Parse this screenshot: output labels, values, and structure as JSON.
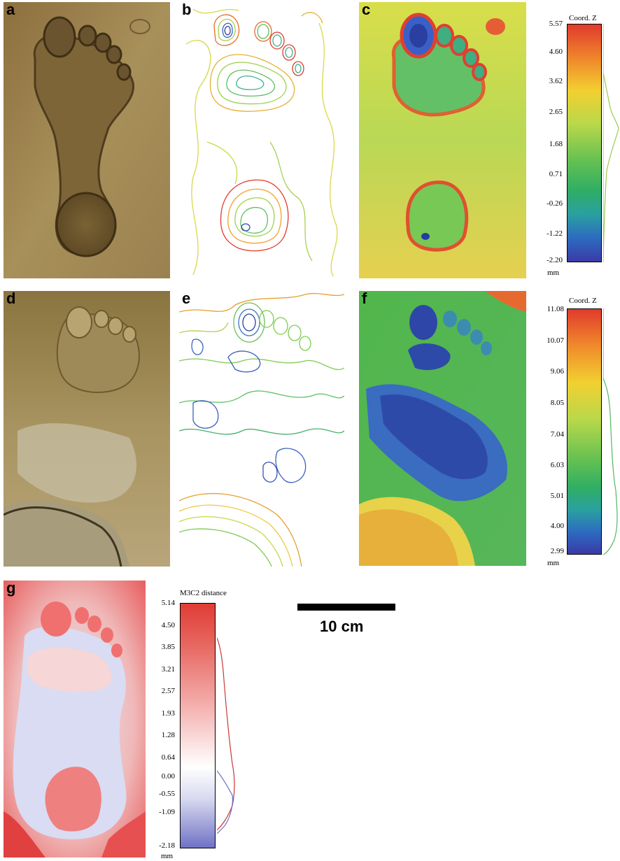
{
  "panels": {
    "a": {
      "label": "a"
    },
    "b": {
      "label": "b"
    },
    "c": {
      "label": "c"
    },
    "d": {
      "label": "d"
    },
    "e": {
      "label": "e"
    },
    "f": {
      "label": "f"
    },
    "g": {
      "label": "g"
    }
  },
  "colorbar1": {
    "title": "Coord. Z",
    "ticks": [
      "5.57",
      "4.60",
      "3.62",
      "2.65",
      "1.68",
      "0.71",
      "-0.26",
      "-1.22",
      "-2.20"
    ],
    "unit": "mm"
  },
  "colorbar2": {
    "title": "Coord. Z",
    "ticks": [
      "11.08",
      "10.07",
      "9.06",
      "8.05",
      "7.04",
      "6.03",
      "5.01",
      "4.00",
      "2.99"
    ],
    "unit": "mm"
  },
  "colorbar3": {
    "title": "M3C2 distance",
    "ticks": [
      "5.14",
      "4.50",
      "3.85",
      "3.21",
      "2.57",
      "1.93",
      "1.28",
      "0.64",
      "0.00",
      "-0.55",
      "-1.09",
      "-2.18"
    ],
    "unit": "mm"
  },
  "scale": {
    "label": "10 cm"
  },
  "colors": {
    "sepia_light": "#a88c52",
    "sepia_dark": "#6e5630",
    "ochre_light": "#b9a062",
    "ochre_dark": "#7c6634",
    "m3c2_red": "#e03c35",
    "m3c2_white": "#ffffff",
    "m3c2_blue": "#6f72c4"
  }
}
